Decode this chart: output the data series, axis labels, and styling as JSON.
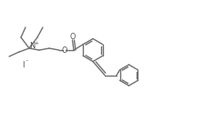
{
  "bg_color": "#ffffff",
  "line_color": "#707070",
  "text_color": "#505050",
  "linewidth": 1.0,
  "figsize": [
    2.24,
    1.35
  ],
  "dpi": 100,
  "xlim": [
    0,
    22.4
  ],
  "ylim": [
    0,
    13.5
  ]
}
